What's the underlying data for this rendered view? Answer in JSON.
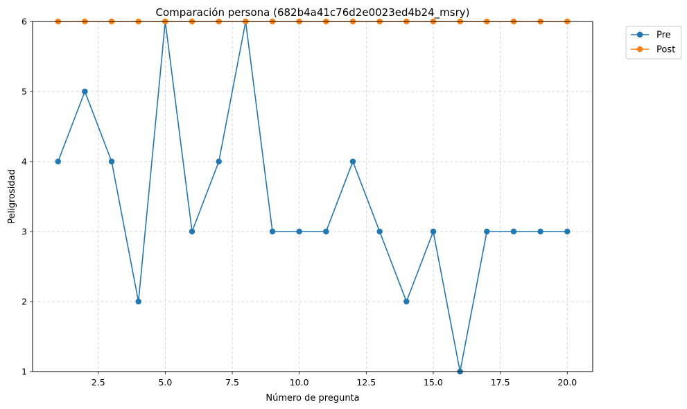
{
  "chart_data": {
    "type": "line",
    "title": "Comparación persona (682b4a41c76d2e0023ed4b24_msry)",
    "xlabel": "Número de pregunta",
    "ylabel": "Peligrosidad",
    "xlim": [
      0.05,
      20.95
    ],
    "ylim": [
      1,
      6
    ],
    "xticks": [
      2.5,
      5.0,
      7.5,
      10.0,
      12.5,
      15.0,
      17.5,
      20.0
    ],
    "xtick_labels": [
      "2.5",
      "5.0",
      "7.5",
      "10.0",
      "12.5",
      "15.0",
      "17.5",
      "20.0"
    ],
    "yticks": [
      1,
      2,
      3,
      4,
      5,
      6
    ],
    "ytick_labels": [
      "1",
      "2",
      "3",
      "4",
      "5",
      "6"
    ],
    "grid": true,
    "legend_position": "outside-top-right",
    "x": [
      1,
      2,
      3,
      4,
      5,
      6,
      7,
      8,
      9,
      10,
      11,
      12,
      13,
      14,
      15,
      16,
      17,
      18,
      19,
      20
    ],
    "series": [
      {
        "name": "Pre",
        "color": "#1f77b4",
        "values": [
          4,
          5,
          4,
          2,
          6,
          3,
          4,
          6,
          3,
          3,
          3,
          4,
          3,
          2,
          3,
          1,
          3,
          3,
          3,
          3
        ]
      },
      {
        "name": "Post",
        "color": "#ff7f0e",
        "values": [
          6,
          6,
          6,
          6,
          6,
          6,
          6,
          6,
          6,
          6,
          6,
          6,
          6,
          6,
          6,
          6,
          6,
          6,
          6,
          6
        ]
      }
    ]
  }
}
